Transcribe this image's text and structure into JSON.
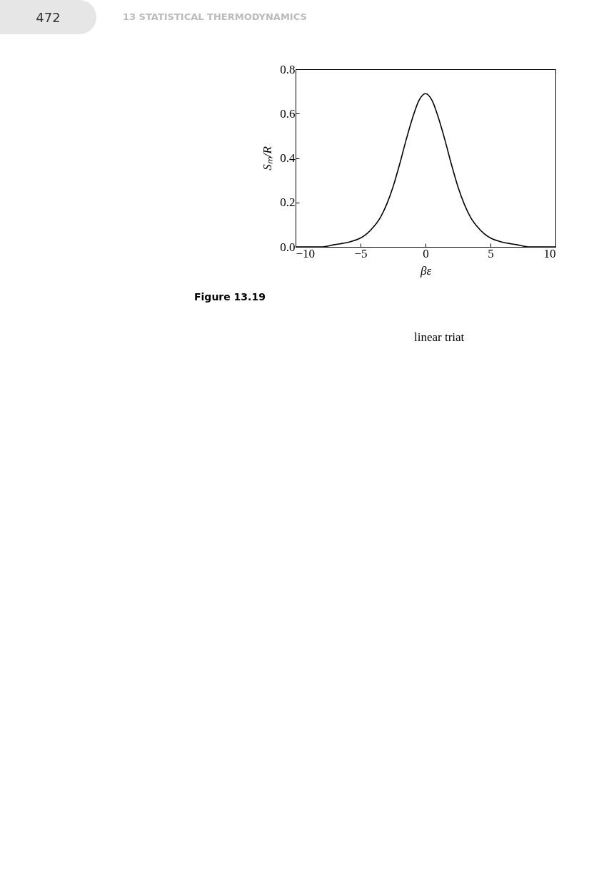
{
  "chart_data": {
    "type": "line",
    "xlabel": "βε",
    "ylabel": "Sₘ/R",
    "x": [
      -10,
      -8,
      -7,
      -6,
      -5,
      -4.5,
      -4,
      -3.5,
      -3,
      -2.5,
      -2,
      -1.5,
      -1,
      -0.5,
      0,
      0.5,
      1,
      1.5,
      2,
      2.5,
      3,
      3.5,
      4,
      4.5,
      5,
      6,
      7,
      8,
      10
    ],
    "series": [
      {
        "color": "#000000",
        "values": [
          0,
          0,
          0.01,
          0.02,
          0.04,
          0.06,
          0.09,
          0.13,
          0.19,
          0.27,
          0.37,
          0.48,
          0.58,
          0.66,
          0.69,
          0.66,
          0.58,
          0.48,
          0.37,
          0.27,
          0.19,
          0.13,
          0.09,
          0.06,
          0.04,
          0.02,
          0.01,
          0,
          0
        ]
      }
    ],
    "xlim": [
      -10,
      10
    ],
    "ylim": [
      0,
      0.8
    ],
    "xticks": [
      -10,
      -5,
      0,
      5,
      10
    ],
    "yticks": [
      {
        "value": 0,
        "label": "0.0"
      },
      {
        "value": 0.2,
        "label": "0.2"
      },
      {
        "value": 0.4,
        "label": "0.4"
      },
      {
        "value": 0.6,
        "label": "0.6"
      },
      {
        "value": 0.8,
        "label": "0.8"
      }
    ],
    "grid": false,
    "marker": "none",
    "line_style": "solid",
    "annotations": [
      "472",
      "13 STATISTICAL THERMODYNAMICS",
      "Figure 13.19",
      "linear triat"
    ]
  }
}
